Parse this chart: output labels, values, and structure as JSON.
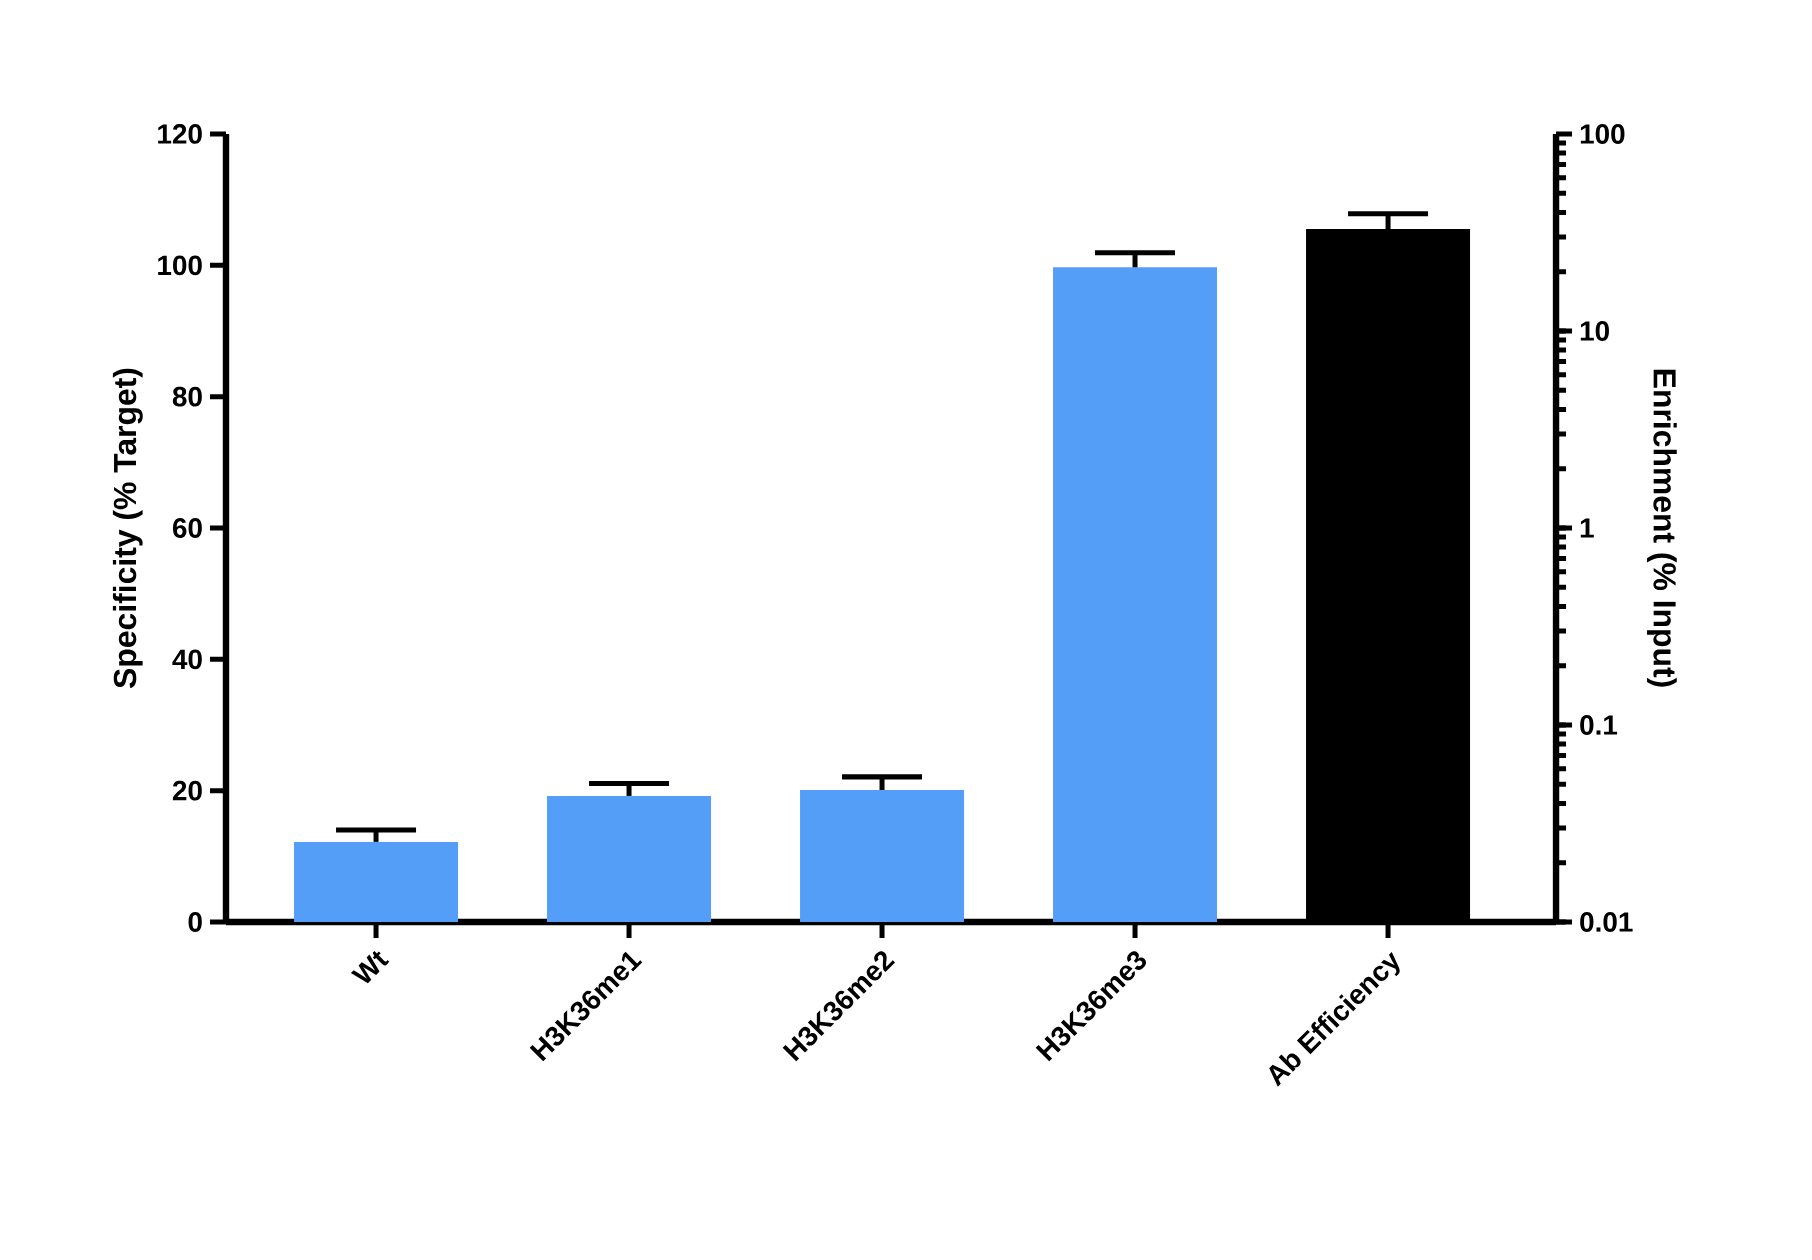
{
  "chart_data": {
    "type": "bar",
    "categories": [
      "Wt",
      "H3K36me1",
      "H3K36me2",
      "H3K36me3",
      "Ab Efficiency"
    ],
    "ylabel": "Specificity (% Target)",
    "y2label": "Enrichment (% Input)",
    "ylim": [
      0,
      120
    ],
    "yticks": [
      0,
      20,
      40,
      60,
      80,
      100,
      120
    ],
    "y2lim": [
      0.01,
      100
    ],
    "y2ticks": [
      0.01,
      0.1,
      1,
      10,
      100
    ],
    "log": "y2",
    "series": [
      {
        "color": "#559ef8",
        "values": [
          12.2,
          19.2,
          20.1,
          99.7,
          null
        ],
        "errors": [
          [
            12.2,
            14.0
          ],
          [
            19.2,
            21.1
          ],
          [
            20.1,
            22.1
          ],
          [
            99.7,
            101.9
          ],
          null
        ]
      },
      {
        "color": "#000000",
        "axis": "y2",
        "values": [
          null,
          null,
          null,
          null,
          32.9
        ],
        "errors": [
          null,
          null,
          null,
          null,
          [
            32.9,
            39.4
          ]
        ]
      }
    ],
    "grid": false
  }
}
